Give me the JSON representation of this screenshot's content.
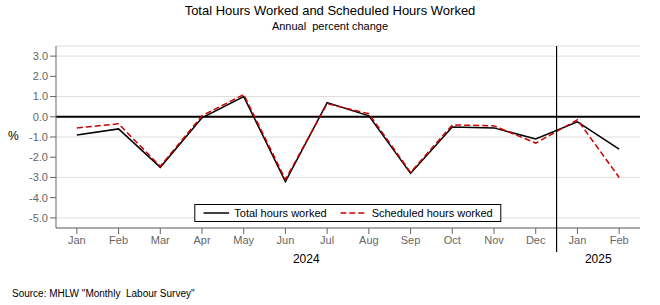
{
  "chart_data": {
    "type": "line",
    "title": "Total Hours Worked and Scheduled Hours Worked",
    "subtitle": "Annual  percent change",
    "ylabel": "%",
    "source": "Source: MHLW \"Monthly  Labour Survey\"",
    "categories": [
      "Jan",
      "Feb",
      "Mar",
      "Apr",
      "May",
      "Jun",
      "Jul",
      "Aug",
      "Sep",
      "Oct",
      "Nov",
      "Dec",
      "Jan",
      "Feb"
    ],
    "annotations": [
      "2024",
      "2025"
    ],
    "series": [
      {
        "name": "Total hours worked",
        "color": "#000000",
        "line_style": "solid",
        "values": [
          -0.9,
          -0.6,
          -2.5,
          -0.05,
          1.0,
          -3.2,
          0.7,
          0.05,
          -2.8,
          -0.5,
          -0.55,
          -1.1,
          -0.25,
          -1.6
        ]
      },
      {
        "name": "Scheduled hours worked",
        "color": "#cc0000",
        "line_style": "dashed",
        "values": [
          -0.55,
          -0.35,
          -2.45,
          0.05,
          1.1,
          -3.1,
          0.65,
          0.15,
          -2.75,
          -0.4,
          -0.45,
          -1.3,
          -0.15,
          -3.0
        ]
      }
    ],
    "ylim": [
      -5.5,
      3.5
    ],
    "yticks": [
      {
        "value": -5.0,
        "label": "-5.0"
      },
      {
        "value": -4.0,
        "label": "-4.0"
      },
      {
        "value": -3.0,
        "label": "-3.0"
      },
      {
        "value": -2.0,
        "label": "-2.0"
      },
      {
        "value": -1.0,
        "label": "-1.0"
      },
      {
        "value": 0.0,
        "label": "0.0"
      },
      {
        "value": 1.0,
        "label": "1.0"
      },
      {
        "value": 2.0,
        "label": "2.0"
      },
      {
        "value": 3.0,
        "label": "3.0"
      }
    ],
    "reference_line": 0.0,
    "grid": true,
    "legend": "lower center"
  }
}
